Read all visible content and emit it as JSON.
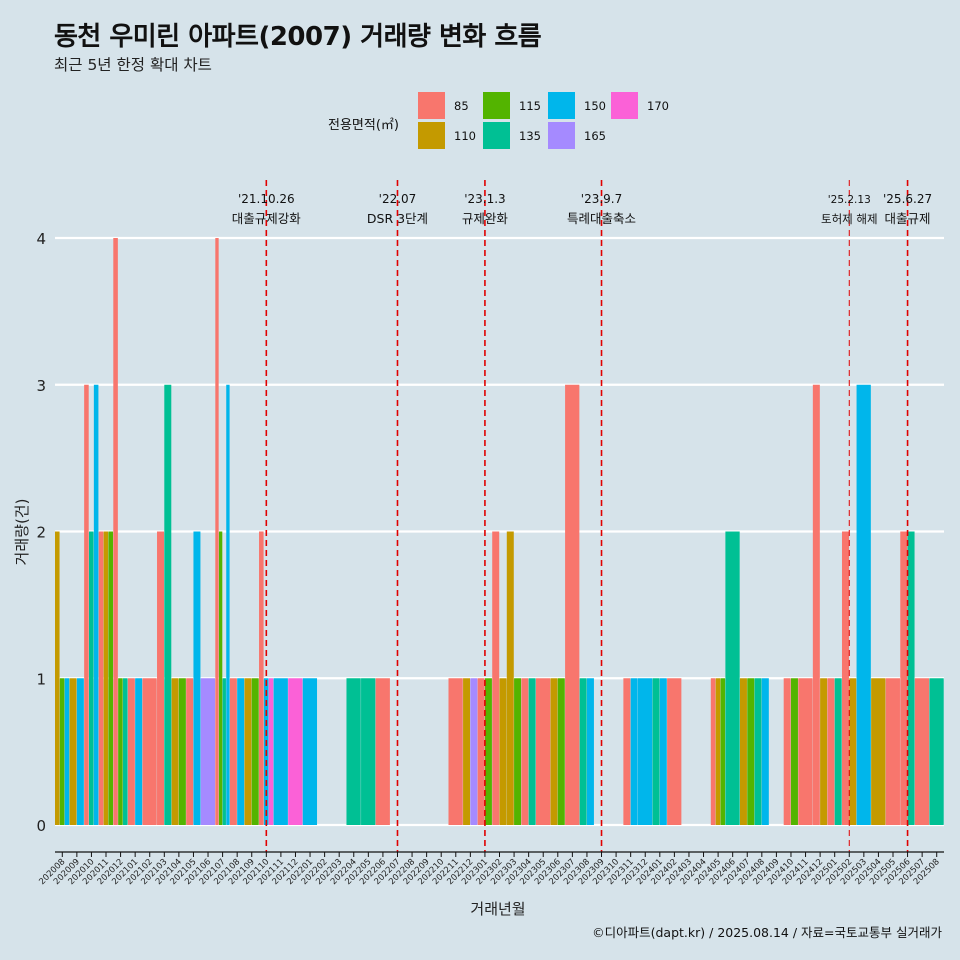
{
  "header": {
    "title": "동천 우미린 아파트(2007) 거래량 변화 흐름",
    "subtitle": "최근 5년 한정 확대 차트"
  },
  "legend": {
    "title": "전용면적(㎡)",
    "items": [
      {
        "label": "85",
        "color": "#F8766D"
      },
      {
        "label": "110",
        "color": "#C49A00"
      },
      {
        "label": "115",
        "color": "#53B400"
      },
      {
        "label": "135",
        "color": "#00C094"
      },
      {
        "label": "150",
        "color": "#00B6EB"
      },
      {
        "label": "165",
        "color": "#A58AFF"
      },
      {
        "label": "170",
        "color": "#FB61D7"
      }
    ]
  },
  "caption": "©디아파트(dapt.kr) / 2025.08.14 / 자료=국토교통부 실거래가",
  "chart_data": {
    "type": "bar",
    "xlabel": "거래년월",
    "ylabel": "거래량(건)",
    "ylim": [
      0,
      4
    ],
    "y_ticks": [
      "0",
      "1",
      "2",
      "3",
      "4"
    ],
    "grid": true,
    "legend_position": "top",
    "categories": [
      "202008",
      "202009",
      "202010",
      "202011",
      "202012",
      "202101",
      "202102",
      "202103",
      "202104",
      "202105",
      "202106",
      "202107",
      "202108",
      "202109",
      "202110",
      "202111",
      "202112",
      "202201",
      "202202",
      "202203",
      "202204",
      "202205",
      "202206",
      "202207",
      "202208",
      "202209",
      "202210",
      "202211",
      "202212",
      "202301",
      "202302",
      "202303",
      "202304",
      "202305",
      "202306",
      "202307",
      "202308",
      "202309",
      "202310",
      "202311",
      "202312",
      "202401",
      "202402",
      "202403",
      "202404",
      "202405",
      "202406",
      "202407",
      "202408",
      "202409",
      "202410",
      "202411",
      "202412",
      "202501",
      "202502",
      "202503",
      "202504",
      "202505",
      "202506",
      "202507",
      "202508"
    ],
    "series": [
      {
        "name": "85",
        "values": [
          0,
          0,
          3,
          2,
          4,
          1,
          1,
          2,
          0,
          1,
          0,
          4,
          1,
          0,
          2,
          0,
          0,
          0,
          0,
          0,
          0,
          0,
          1,
          0,
          0,
          0,
          0,
          1,
          0,
          1,
          2,
          0,
          1,
          1,
          0,
          3,
          0,
          0,
          0,
          1,
          0,
          0,
          1,
          0,
          0,
          1,
          0,
          0,
          0,
          0,
          1,
          1,
          3,
          1,
          2,
          0,
          0,
          1,
          2,
          1,
          0
        ]
      },
      {
        "name": "110",
        "values": [
          2,
          1,
          0,
          2,
          0,
          0,
          0,
          0,
          1,
          0,
          0,
          0,
          0,
          1,
          0,
          0,
          0,
          0,
          0,
          0,
          0,
          0,
          0,
          0,
          0,
          0,
          0,
          0,
          1,
          0,
          1,
          2,
          0,
          0,
          1,
          0,
          0,
          0,
          0,
          0,
          0,
          0,
          0,
          0,
          0,
          1,
          0,
          1,
          0,
          0,
          0,
          0,
          1,
          0,
          1,
          0,
          1,
          0,
          0,
          0,
          0
        ]
      },
      {
        "name": "115",
        "values": [
          1,
          0,
          0,
          2,
          1,
          0,
          0,
          0,
          1,
          0,
          0,
          2,
          0,
          1,
          0,
          0,
          0,
          0,
          0,
          0,
          0,
          0,
          0,
          0,
          0,
          0,
          0,
          0,
          0,
          1,
          0,
          1,
          0,
          0,
          1,
          0,
          0,
          0,
          0,
          0,
          0,
          0,
          0,
          0,
          0,
          1,
          0,
          1,
          0,
          0,
          1,
          0,
          0,
          0,
          0,
          0,
          0,
          0,
          0,
          0,
          0
        ]
      },
      {
        "name": "135",
        "values": [
          0,
          0,
          2,
          0,
          1,
          0,
          0,
          3,
          0,
          0,
          0,
          1,
          0,
          0,
          0,
          0,
          0,
          0,
          0,
          0,
          1,
          1,
          0,
          0,
          0,
          0,
          0,
          0,
          0,
          0,
          0,
          0,
          1,
          0,
          0,
          0,
          1,
          0,
          0,
          0,
          0,
          1,
          0,
          0,
          0,
          0,
          2,
          0,
          1,
          0,
          0,
          0,
          0,
          1,
          0,
          0,
          0,
          0,
          2,
          0,
          1
        ]
      },
      {
        "name": "150",
        "values": [
          1,
          1,
          3,
          0,
          0,
          1,
          0,
          0,
          0,
          2,
          0,
          3,
          1,
          0,
          1,
          1,
          0,
          1,
          0,
          0,
          0,
          0,
          0,
          0,
          0,
          0,
          0,
          0,
          0,
          0,
          0,
          0,
          0,
          0,
          0,
          0,
          1,
          0,
          0,
          1,
          1,
          1,
          0,
          0,
          0,
          0,
          0,
          0,
          1,
          0,
          0,
          0,
          0,
          0,
          0,
          3,
          0,
          0,
          0,
          0,
          0
        ]
      },
      {
        "name": "165",
        "values": [
          0,
          0,
          0,
          0,
          0,
          0,
          0,
          0,
          0,
          0,
          1,
          0,
          0,
          0,
          0,
          0,
          0,
          0,
          0,
          0,
          0,
          0,
          0,
          0,
          0,
          0,
          0,
          0,
          1,
          0,
          0,
          0,
          0,
          0,
          0,
          0,
          0,
          0,
          0,
          0,
          0,
          0,
          0,
          0,
          0,
          0,
          0,
          0,
          0,
          0,
          0,
          0,
          0,
          0,
          0,
          0,
          0,
          0,
          0,
          0,
          0
        ]
      },
      {
        "name": "170",
        "values": [
          0,
          0,
          0,
          0,
          0,
          0,
          0,
          0,
          0,
          0,
          0,
          0,
          0,
          0,
          1,
          0,
          1,
          0,
          0,
          0,
          0,
          0,
          0,
          0,
          0,
          0,
          0,
          0,
          0,
          0,
          0,
          0,
          0,
          0,
          0,
          0,
          0,
          0,
          0,
          0,
          0,
          0,
          0,
          0,
          0,
          0,
          0,
          0,
          0,
          0,
          0,
          0,
          0,
          0,
          0,
          0,
          0,
          0,
          0,
          0,
          0
        ]
      }
    ],
    "annotations": [
      {
        "x": "202110",
        "date": "'21.10.26",
        "text": "대출규제강화"
      },
      {
        "x": "202207",
        "date": "'22.07",
        "text": "DSR 3단계"
      },
      {
        "x": "202301",
        "date": "'23.1.3",
        "text": "규제완화"
      },
      {
        "x": "202309",
        "date": "'23.9.7",
        "text": "특례대출축소"
      },
      {
        "x": "202502",
        "date": "'25.2.13",
        "text": "토허제 해제"
      },
      {
        "x": "202506",
        "date": "'25.6.27",
        "text": "대출규제"
      }
    ]
  }
}
